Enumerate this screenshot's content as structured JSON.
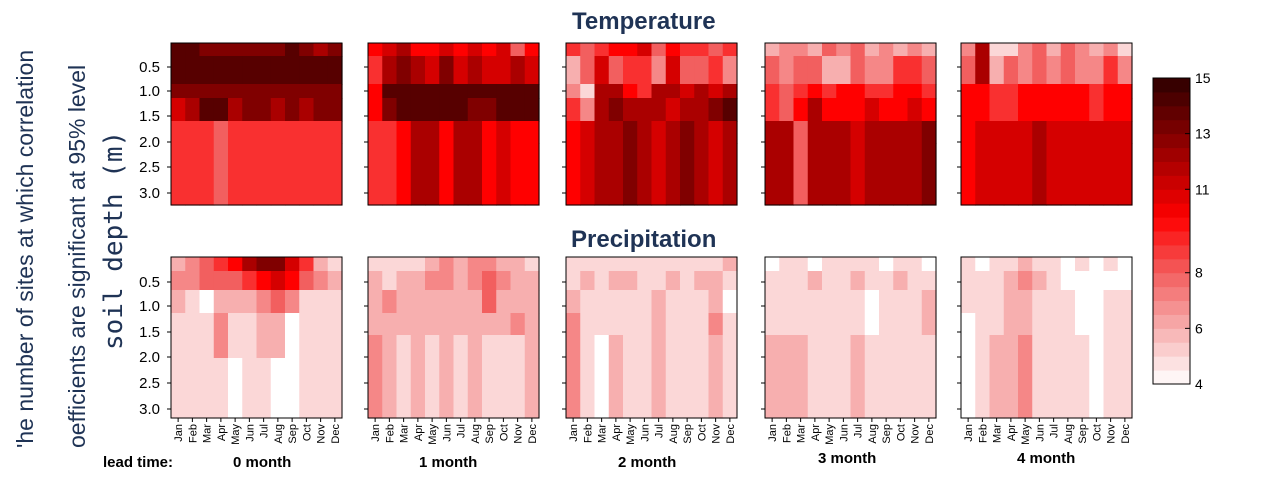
{
  "chart_data": {
    "type": "heatmap",
    "row_titles": [
      "Temperature",
      "Precipitation"
    ],
    "ylabel_lines": [
      "'he number of sites at which correlation",
      "oefficients are significant at 95% level"
    ],
    "ylabel_depth": "soil depth (m)",
    "lead_time_label": "lead time:",
    "lead_times": [
      "0 month",
      "1 month",
      "2 month",
      "3 month",
      "4 month"
    ],
    "months": [
      "Jan",
      "Feb",
      "Mar",
      "Apr",
      "May",
      "Jun",
      "Jul",
      "Aug",
      "Sep",
      "Oct",
      "Nov",
      "Dec"
    ],
    "depth_ticks": [
      "0.5",
      "1.0",
      "1.5",
      "2.0",
      "2.5",
      "3.0"
    ],
    "colorbar": {
      "min": 4,
      "max": 15,
      "ticks": [
        "4",
        "6",
        "8",
        "11",
        "13",
        "15"
      ]
    },
    "grid": false,
    "data": {
      "Temperature": [
        [
          [
            14,
            14,
            13,
            13,
            13,
            13,
            13,
            13,
            14,
            13,
            12,
            13
          ],
          [
            14,
            14,
            14,
            14,
            14,
            14,
            14,
            14,
            14,
            14,
            14,
            14
          ],
          [
            13,
            13,
            13,
            13,
            13,
            13,
            13,
            13,
            13,
            13,
            13,
            13
          ],
          [
            11,
            12,
            14,
            14,
            12,
            13,
            13,
            12,
            13,
            12,
            13,
            13
          ],
          [
            9,
            9,
            9,
            8,
            9,
            9,
            9,
            9,
            9,
            9,
            9,
            9
          ],
          [
            9,
            9,
            9,
            8,
            9,
            9,
            9,
            9,
            9,
            9,
            9,
            9
          ]
        ],
        [
          [
            10,
            11,
            12,
            10,
            10,
            11,
            10,
            11,
            10,
            11,
            8,
            10
          ],
          [
            9,
            12,
            13,
            12,
            11,
            13,
            11,
            12,
            11,
            11,
            12,
            11
          ],
          [
            10,
            14,
            14,
            14,
            14,
            14,
            14,
            14,
            14,
            14,
            14,
            14
          ],
          [
            10,
            13,
            14,
            14,
            14,
            14,
            14,
            13,
            13,
            14,
            14,
            14
          ],
          [
            9,
            9,
            10,
            12,
            12,
            10,
            12,
            12,
            10,
            11,
            10,
            10
          ],
          [
            9,
            9,
            10,
            12,
            12,
            10,
            12,
            12,
            10,
            11,
            10,
            10
          ]
        ],
        [
          [
            9,
            8,
            9,
            10,
            10,
            11,
            8,
            10,
            9,
            9,
            8,
            9
          ],
          [
            6,
            8,
            11,
            8,
            9,
            9,
            7,
            11,
            8,
            8,
            9,
            7
          ],
          [
            7,
            5,
            12,
            12,
            10,
            9,
            12,
            12,
            11,
            12,
            11,
            12
          ],
          [
            9,
            7,
            12,
            13,
            12,
            12,
            12,
            11,
            12,
            12,
            13,
            14
          ],
          [
            10,
            11,
            12,
            12,
            13,
            12,
            11,
            12,
            13,
            12,
            11,
            12
          ],
          [
            10,
            11,
            12,
            12,
            13,
            12,
            11,
            12,
            13,
            12,
            11,
            12
          ]
        ],
        [
          [
            6,
            7,
            7,
            6,
            8,
            7,
            8,
            6,
            7,
            6,
            7,
            6
          ],
          [
            8,
            7,
            8,
            8,
            6,
            6,
            8,
            7,
            7,
            9,
            9,
            8
          ],
          [
            9,
            8,
            9,
            10,
            9,
            10,
            10,
            9,
            9,
            10,
            10,
            9
          ],
          [
            9,
            8,
            10,
            12,
            10,
            10,
            10,
            11,
            10,
            10,
            11,
            10
          ],
          [
            12,
            12,
            8,
            12,
            12,
            12,
            11,
            12,
            12,
            12,
            12,
            13
          ],
          [
            12,
            12,
            8,
            12,
            12,
            12,
            11,
            12,
            12,
            12,
            12,
            13
          ]
        ],
        [
          [
            7,
            12,
            5,
            5,
            7,
            8,
            6,
            8,
            7,
            6,
            7,
            5
          ],
          [
            8,
            12,
            6,
            8,
            7,
            8,
            7,
            8,
            7,
            7,
            9,
            7
          ],
          [
            10,
            10,
            9,
            9,
            10,
            10,
            10,
            10,
            10,
            9,
            10,
            10
          ],
          [
            10,
            10,
            9,
            9,
            10,
            10,
            10,
            10,
            10,
            9,
            10,
            10
          ],
          [
            10,
            11,
            11,
            11,
            11,
            12,
            11,
            11,
            11,
            11,
            11,
            11
          ],
          [
            10,
            11,
            11,
            11,
            11,
            12,
            11,
            11,
            11,
            11,
            11,
            11
          ]
        ]
      ],
      "Precipitation": [
        [
          [
            6,
            7,
            8,
            9,
            10,
            12,
            13,
            13,
            11,
            9,
            6,
            5
          ],
          [
            7,
            7,
            8,
            8,
            8,
            9,
            10,
            11,
            10,
            8,
            7,
            6
          ],
          [
            6,
            5,
            4,
            6,
            6,
            6,
            7,
            8,
            7,
            5,
            5,
            5
          ],
          [
            5,
            5,
            5,
            7,
            5,
            5,
            6,
            6,
            4,
            5,
            5,
            5
          ],
          [
            5,
            5,
            5,
            7,
            5,
            5,
            6,
            6,
            4,
            5,
            5,
            5
          ],
          [
            5,
            5,
            5,
            5,
            4,
            5,
            5,
            4,
            4,
            5,
            5,
            5
          ]
        ],
        [
          [
            5,
            5,
            5,
            5,
            6,
            7,
            6,
            7,
            7,
            6,
            6,
            5
          ],
          [
            6,
            5,
            6,
            6,
            7,
            7,
            6,
            7,
            8,
            7,
            6,
            6
          ],
          [
            6,
            7,
            6,
            6,
            6,
            6,
            6,
            6,
            8,
            6,
            6,
            6
          ],
          [
            6,
            6,
            6,
            6,
            6,
            6,
            6,
            6,
            6,
            6,
            7,
            6
          ],
          [
            7,
            6,
            5,
            6,
            5,
            6,
            5,
            6,
            5,
            5,
            5,
            6
          ],
          [
            7,
            6,
            5,
            6,
            5,
            6,
            5,
            6,
            5,
            5,
            5,
            6
          ]
        ],
        [
          [
            5,
            5,
            5,
            5,
            5,
            5,
            5,
            5,
            5,
            5,
            5,
            6
          ],
          [
            5,
            6,
            5,
            6,
            6,
            5,
            5,
            6,
            5,
            6,
            6,
            5
          ],
          [
            6,
            5,
            5,
            5,
            5,
            5,
            6,
            5,
            5,
            5,
            6,
            4
          ],
          [
            7,
            5,
            5,
            5,
            5,
            5,
            6,
            5,
            5,
            5,
            7,
            5
          ],
          [
            7,
            5,
            4,
            6,
            5,
            5,
            6,
            5,
            5,
            5,
            6,
            5
          ],
          [
            7,
            5,
            4,
            6,
            5,
            5,
            6,
            5,
            5,
            5,
            6,
            5
          ]
        ],
        [
          [
            4,
            5,
            5,
            4,
            5,
            5,
            5,
            5,
            4,
            5,
            5,
            4
          ],
          [
            5,
            5,
            5,
            6,
            5,
            5,
            6,
            5,
            5,
            6,
            5,
            5
          ],
          [
            5,
            5,
            5,
            5,
            5,
            5,
            5,
            4,
            5,
            5,
            5,
            6
          ],
          [
            5,
            5,
            5,
            5,
            5,
            5,
            5,
            4,
            5,
            5,
            5,
            6
          ],
          [
            6,
            6,
            6,
            5,
            5,
            5,
            6,
            5,
            5,
            5,
            5,
            5
          ],
          [
            6,
            6,
            6,
            5,
            5,
            5,
            6,
            5,
            5,
            5,
            5,
            5
          ]
        ],
        [
          [
            5,
            4,
            5,
            5,
            6,
            5,
            5,
            4,
            5,
            4,
            5,
            4
          ],
          [
            5,
            5,
            5,
            6,
            7,
            6,
            5,
            4,
            4,
            4,
            4,
            4
          ],
          [
            5,
            5,
            5,
            6,
            6,
            5,
            5,
            5,
            4,
            4,
            5,
            5
          ],
          [
            4,
            5,
            5,
            6,
            6,
            5,
            5,
            5,
            4,
            4,
            5,
            5
          ],
          [
            4,
            5,
            6,
            6,
            7,
            5,
            5,
            5,
            5,
            4,
            5,
            5
          ],
          [
            4,
            5,
            6,
            6,
            7,
            5,
            5,
            5,
            5,
            4,
            5,
            5
          ]
        ]
      ]
    }
  }
}
